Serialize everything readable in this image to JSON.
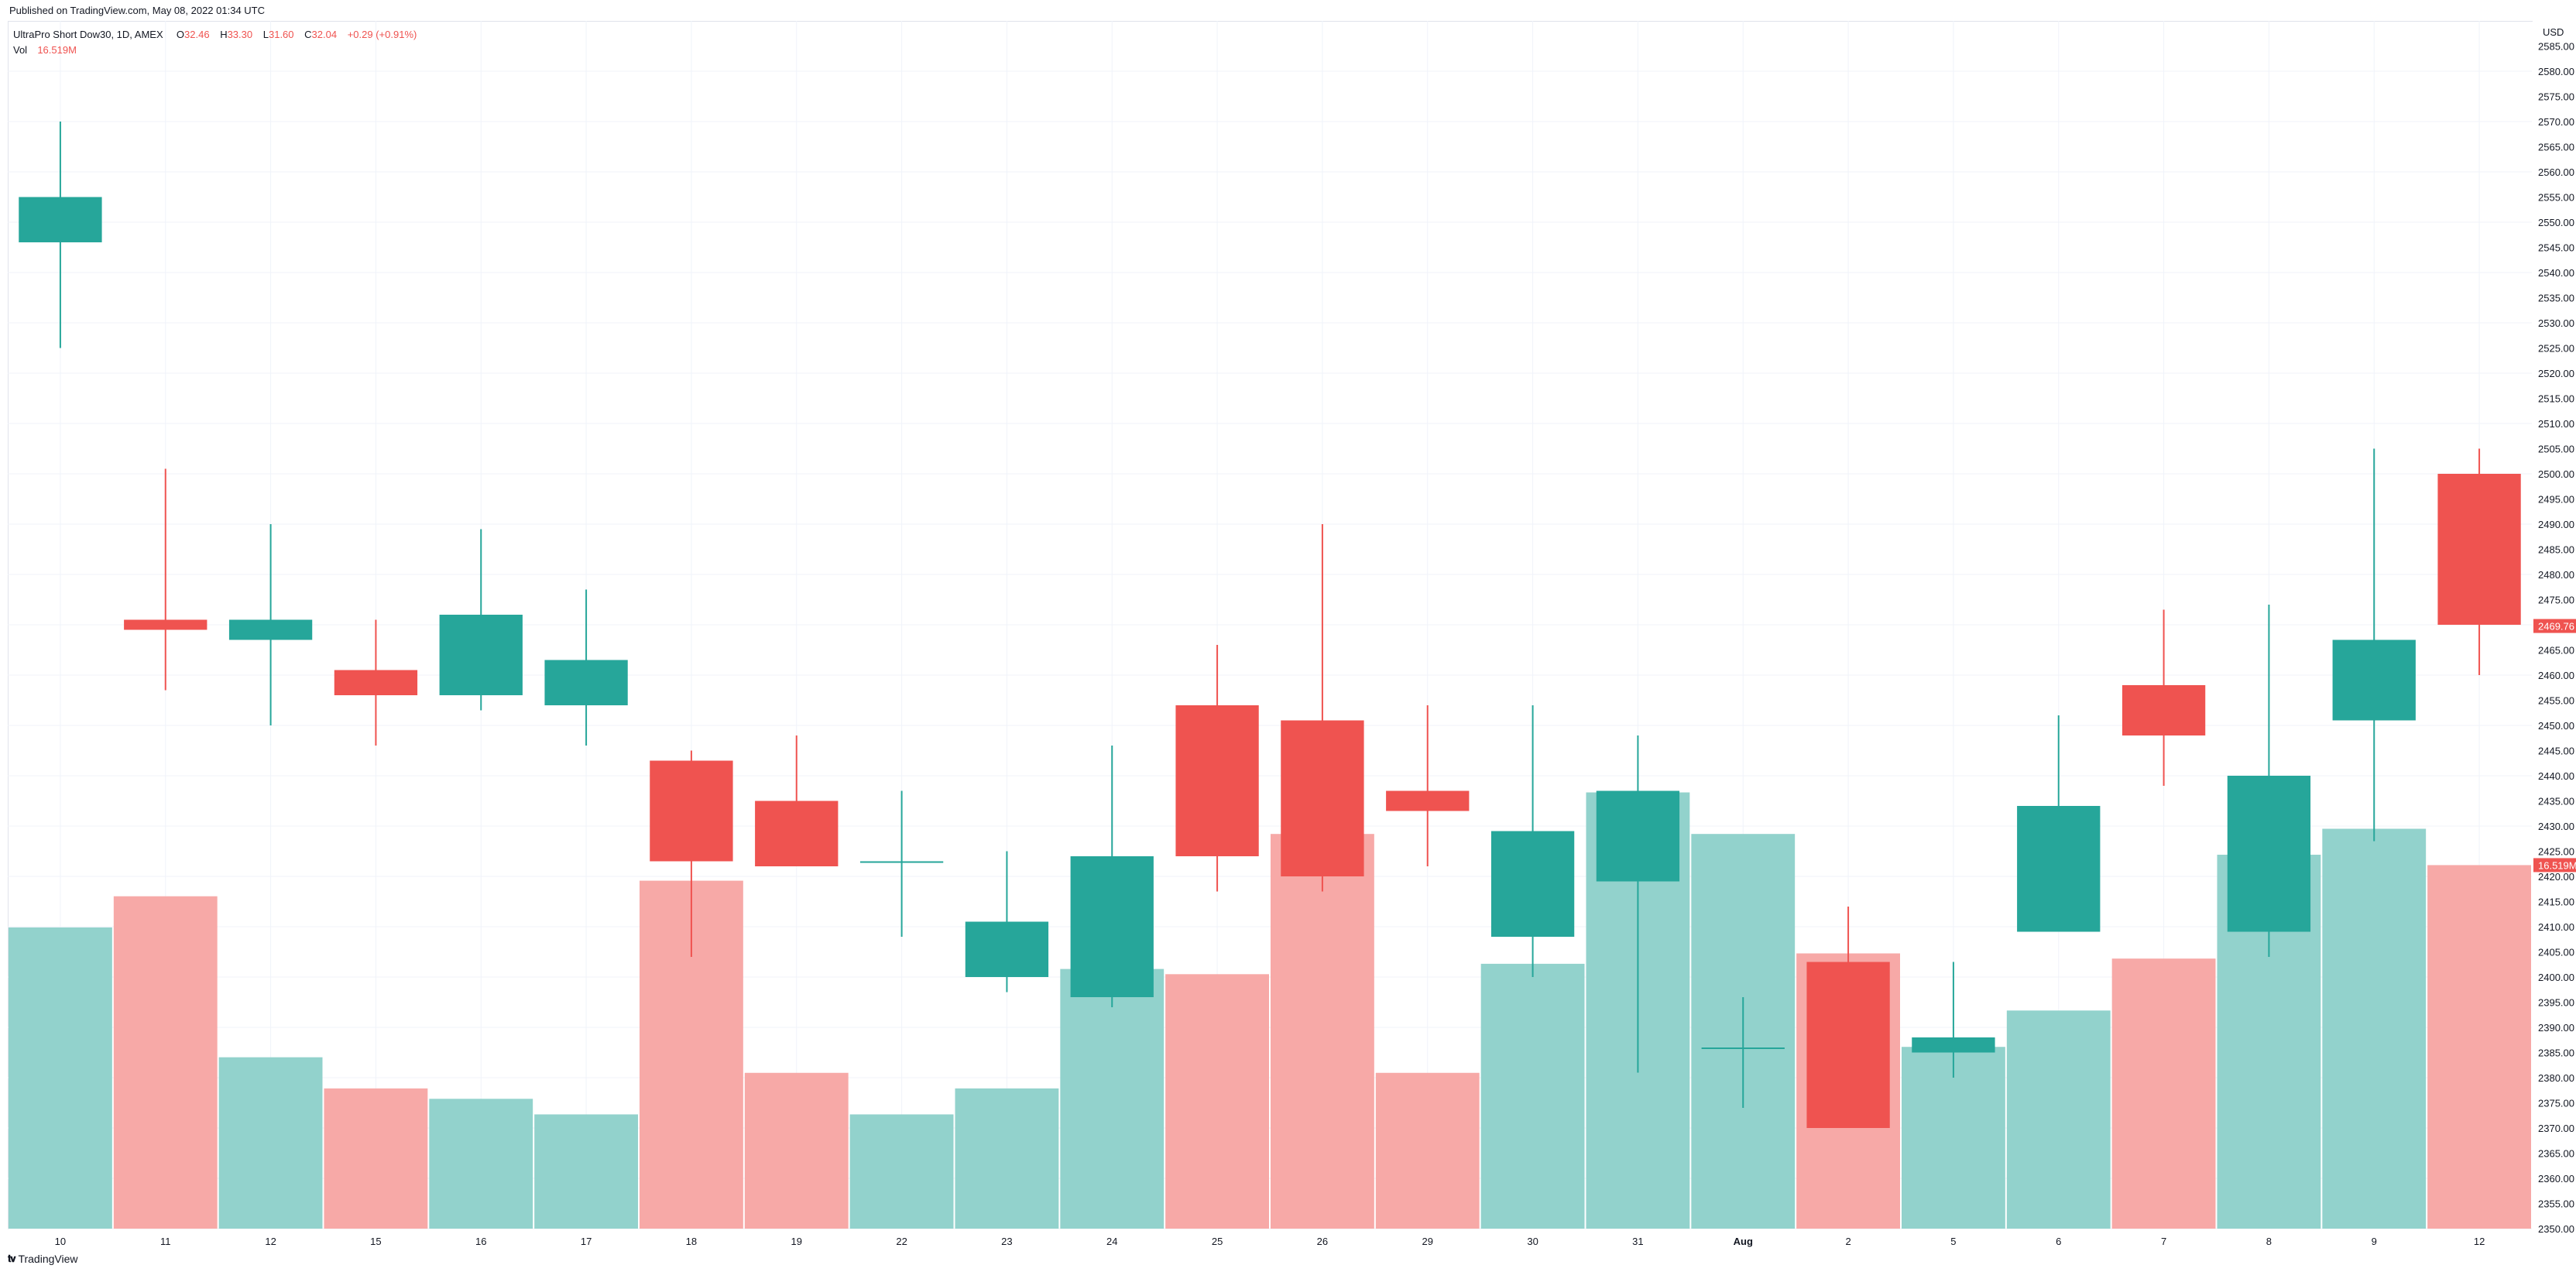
{
  "header": {
    "published": "Published on TradingView.com, May 08, 2022 01:34 UTC"
  },
  "legend": {
    "symbol": "UltraPro Short Dow30, 1D, AMEX",
    "o_label": "O",
    "o_value": "32.46",
    "h_label": "H",
    "h_value": "33.30",
    "l_label": "L",
    "l_value": "31.60",
    "c_label": "C",
    "c_value": "32.04",
    "change": "+0.29 (+0.91%)",
    "vol_label": "Vol",
    "vol_value": "16.519M"
  },
  "footer": {
    "logo_icon": "tradingview-logo-icon",
    "brand": "TradingView"
  },
  "colors": {
    "up": "#26a69a",
    "down": "#ef5350",
    "up_vol": "#92d2cc",
    "down_vol": "#f7a9a7",
    "grid": "#f0f3fa",
    "axis_text": "#131722"
  },
  "chart_data": {
    "type": "candlestick",
    "currency": "USD",
    "y_axis": {
      "min": 2350,
      "max": 2590,
      "step": 5,
      "labels_from": 2350,
      "labels_to": 2585
    },
    "last_price_label": "2469.76",
    "volume_label": "16.519M",
    "candles": [
      {
        "x": "10",
        "open": 2546,
        "high": 2570,
        "low": 2525,
        "close": 2555,
        "vol": 0.58
      },
      {
        "x": "11",
        "open": 2471,
        "high": 2501,
        "low": 2457,
        "close": 2469,
        "vol": 0.64
      },
      {
        "x": "12",
        "open": 2467,
        "high": 2490,
        "low": 2450,
        "close": 2471,
        "vol": 0.33
      },
      {
        "x": "15",
        "open": 2461,
        "high": 2471,
        "low": 2446,
        "close": 2456,
        "vol": 0.27
      },
      {
        "x": "16",
        "open": 2456,
        "high": 2489,
        "low": 2453,
        "close": 2472,
        "vol": 0.25
      },
      {
        "x": "17",
        "open": 2454,
        "high": 2477,
        "low": 2446,
        "close": 2463,
        "vol": 0.22
      },
      {
        "x": "18",
        "open": 2443,
        "high": 2445,
        "low": 2404,
        "close": 2423,
        "vol": 0.67
      },
      {
        "x": "19",
        "open": 2435,
        "high": 2448,
        "low": 2422,
        "close": 2422,
        "vol": 0.3
      },
      {
        "x": "22",
        "open": 2423,
        "high": 2437,
        "low": 2408,
        "close": 2423,
        "vol": 0.22
      },
      {
        "x": "23",
        "open": 2400,
        "high": 2425,
        "low": 2397,
        "close": 2411,
        "vol": 0.27
      },
      {
        "x": "24",
        "open": 2396,
        "high": 2446,
        "low": 2394,
        "close": 2424,
        "vol": 0.5
      },
      {
        "x": "25",
        "open": 2454,
        "high": 2466,
        "low": 2417,
        "close": 2424,
        "vol": 0.49
      },
      {
        "x": "26",
        "open": 2451,
        "high": 2490,
        "low": 2417,
        "close": 2420,
        "vol": 0.76
      },
      {
        "x": "29",
        "open": 2437,
        "high": 2454,
        "low": 2422,
        "close": 2433,
        "vol": 0.3
      },
      {
        "x": "30",
        "open": 2408,
        "high": 2454,
        "low": 2400,
        "close": 2429,
        "vol": 0.51
      },
      {
        "x": "31",
        "open": 2419,
        "high": 2448,
        "low": 2381,
        "close": 2437,
        "vol": 0.84
      },
      {
        "x": "Aug",
        "open": 2386,
        "high": 2396,
        "low": 2374,
        "close": 2386,
        "vol": 0.76
      },
      {
        "x": "2",
        "open": 2403,
        "high": 2414,
        "low": 2370,
        "close": 2370,
        "vol": 0.53
      },
      {
        "x": "5",
        "open": 2385,
        "high": 2403,
        "low": 2380,
        "close": 2388,
        "vol": 0.35
      },
      {
        "x": "6",
        "open": 2409,
        "high": 2452,
        "low": 2409,
        "close": 2434,
        "vol": 0.42
      },
      {
        "x": "7",
        "open": 2458,
        "high": 2473,
        "low": 2438,
        "close": 2448,
        "vol": 0.52
      },
      {
        "x": "8",
        "open": 2409,
        "high": 2474,
        "low": 2404,
        "close": 2440,
        "vol": 0.72
      },
      {
        "x": "9",
        "open": 2451,
        "high": 2505,
        "low": 2427,
        "close": 2467,
        "vol": 0.77
      },
      {
        "x": "12",
        "open": 2500,
        "high": 2505,
        "low": 2460,
        "close": 2470,
        "vol": 0.7
      }
    ]
  }
}
